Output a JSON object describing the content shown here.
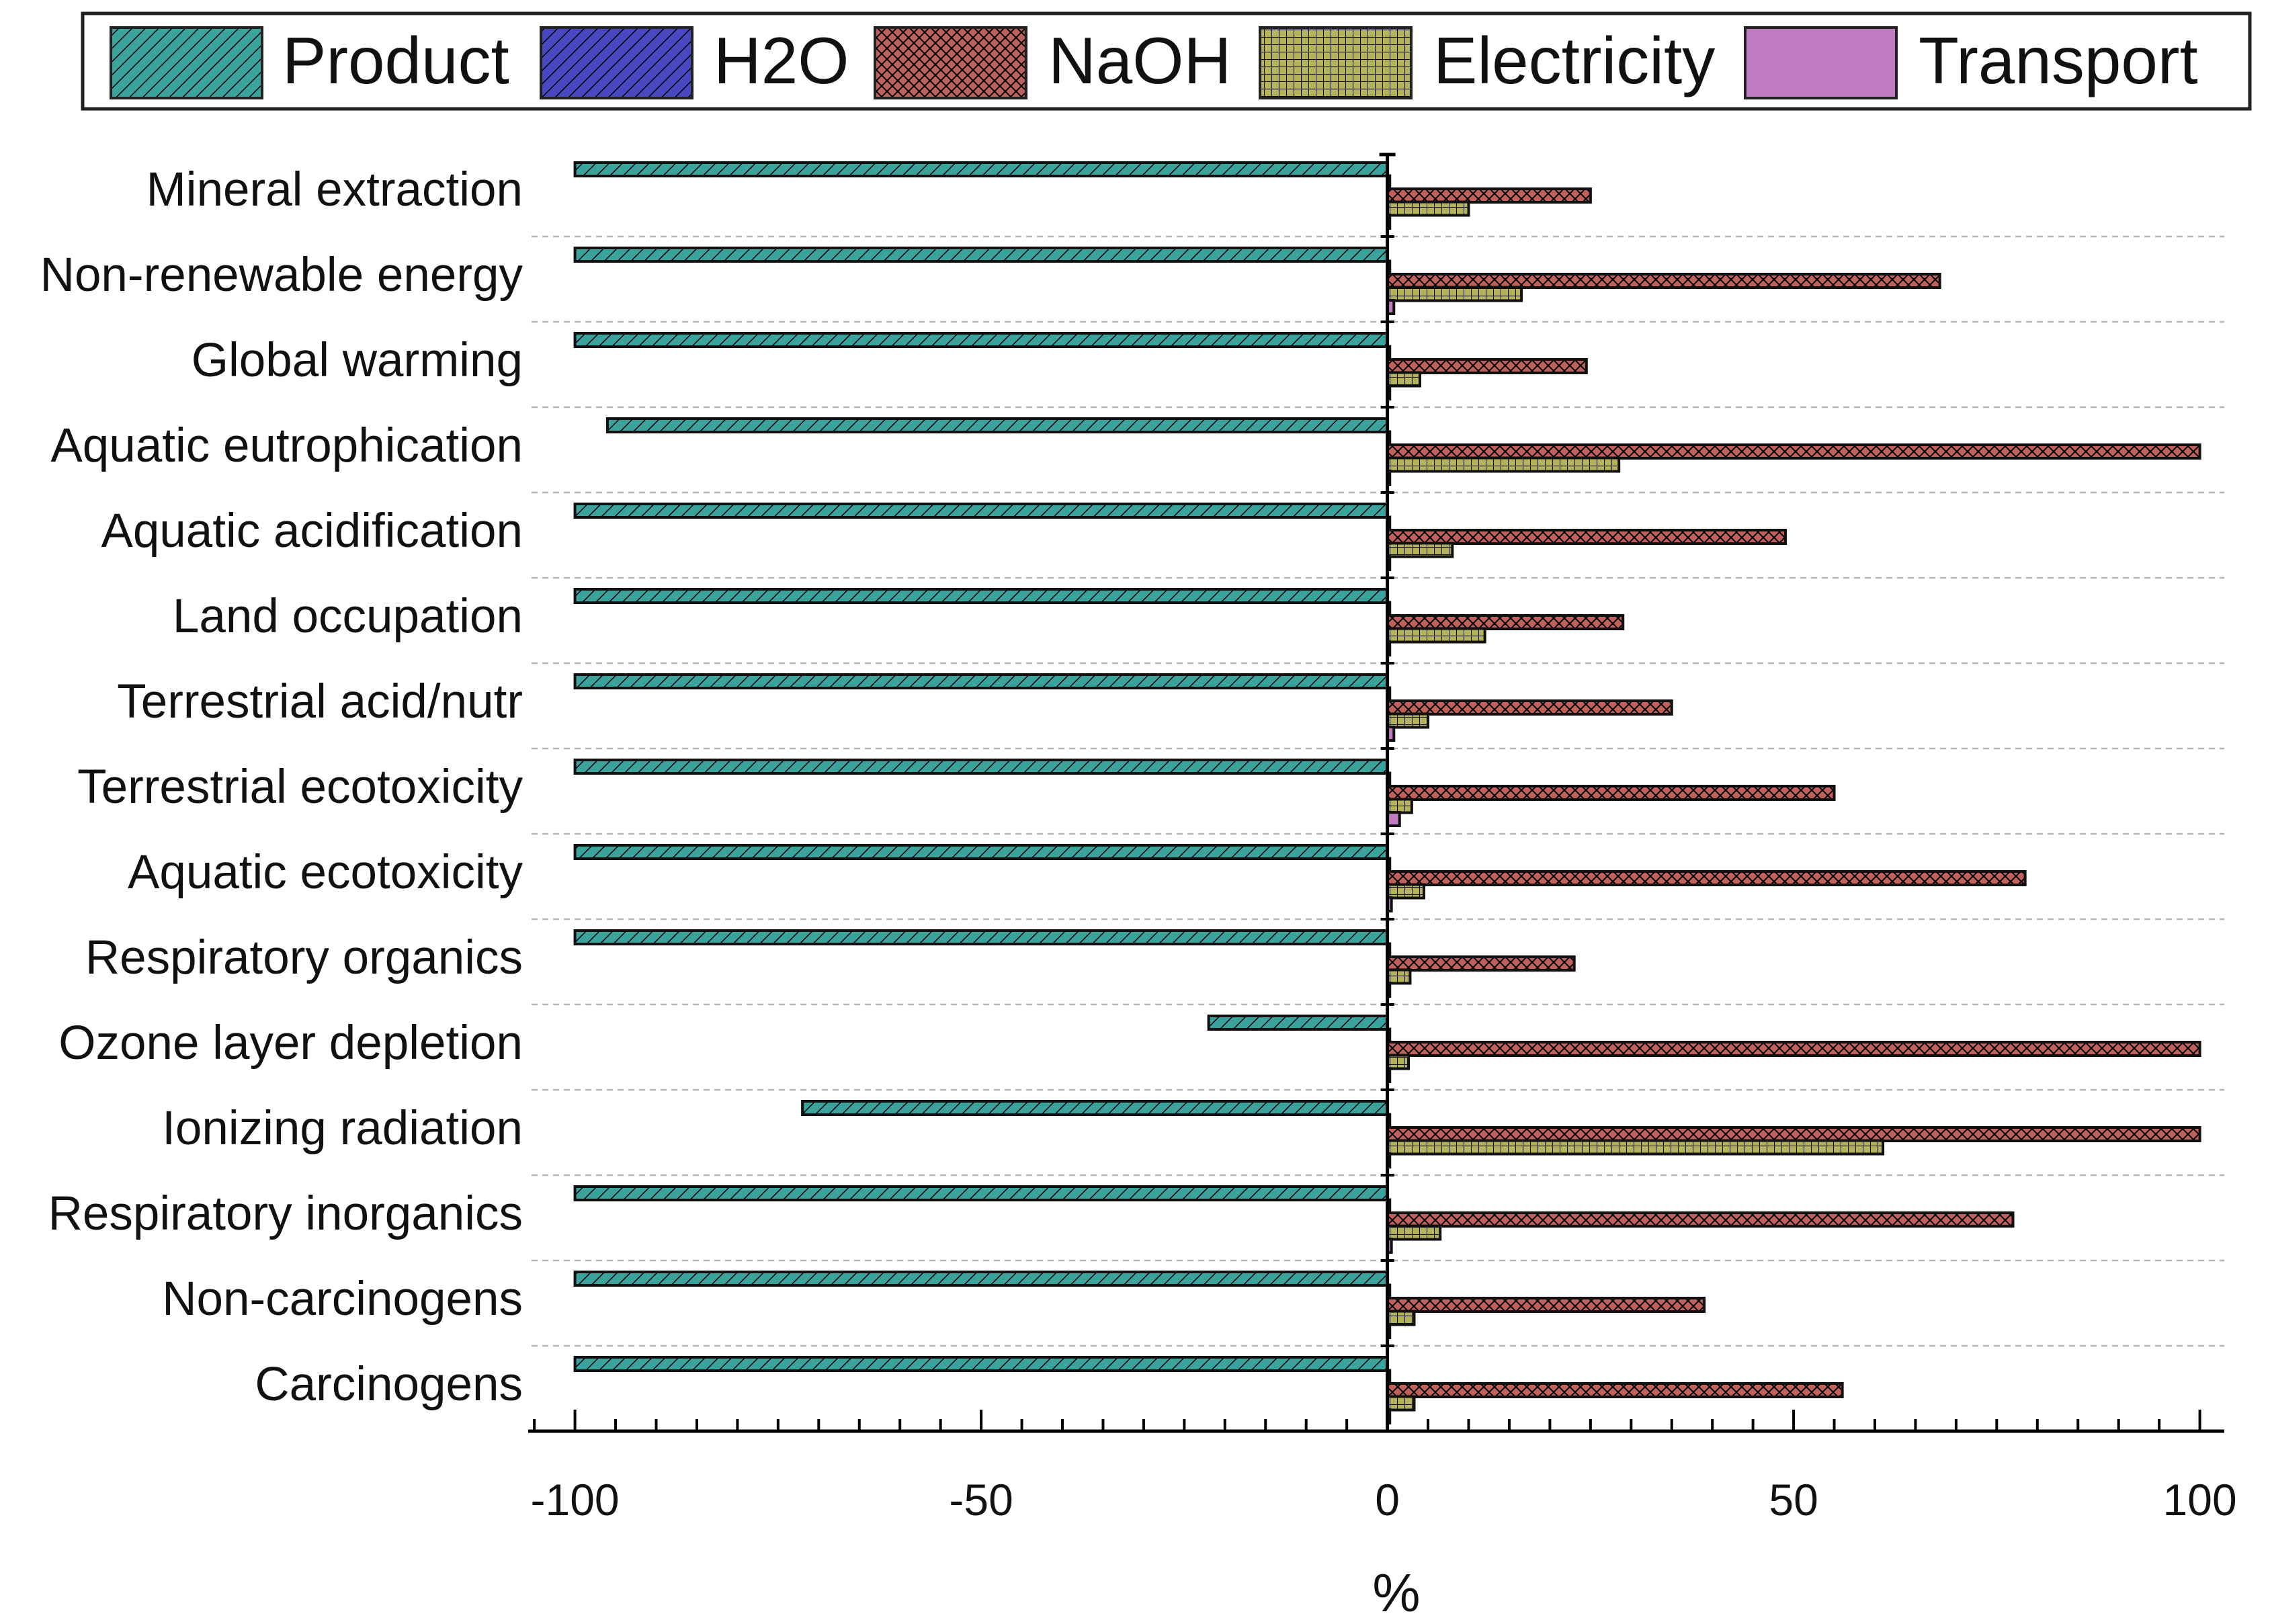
{
  "chart_data": {
    "type": "bar",
    "orientation": "horizontal",
    "categories": [
      "Mineral extraction",
      "Non-renewable energy",
      "Global warming",
      "Aquatic eutrophication",
      "Aquatic acidification",
      "Land occupation",
      "Terrestrial acid/nutr",
      "Terrestrial ecotoxicity",
      "Aquatic ecotoxicity",
      "Respiratory organics",
      "Ozone layer depletion",
      "Ionizing radiation",
      "Respiratory inorganics",
      "Non-carcinogens",
      "Carcinogens"
    ],
    "series": [
      {
        "name": "Product",
        "color": "#3aa39e",
        "pattern": "diagonal",
        "values": [
          -100,
          -100,
          -100,
          -96,
          -100,
          -100,
          -100,
          -100,
          -100,
          -100,
          -22,
          -72,
          -100,
          -100,
          -100
        ]
      },
      {
        "name": "H2O",
        "color": "#4848c0",
        "pattern": "diagonal",
        "values": [
          0.3,
          0.3,
          0.3,
          0.3,
          0.3,
          0.3,
          0.3,
          0.3,
          0.3,
          0.3,
          0.3,
          0.3,
          0.3,
          0.3,
          0.3
        ]
      },
      {
        "name": "NaOH",
        "color": "#c0605c",
        "pattern": "crosshatch",
        "values": [
          25,
          68,
          24.5,
          100,
          49,
          29,
          35,
          55,
          78.5,
          23,
          100,
          100,
          77,
          39,
          56
        ]
      },
      {
        "name": "Electricity",
        "color": "#b5b35a",
        "pattern": "grid",
        "values": [
          10,
          16.5,
          4,
          28.5,
          8,
          12,
          5,
          3,
          4.5,
          2.8,
          2.6,
          61,
          6.5,
          3.3,
          3.3
        ]
      },
      {
        "name": "Transport",
        "color": "#c07cc0",
        "pattern": "solid",
        "values": [
          0.3,
          0.8,
          0.3,
          0.3,
          0.3,
          0.3,
          0.8,
          1.5,
          0.5,
          0.3,
          0.3,
          0.3,
          0.5,
          0.3,
          0.3
        ]
      }
    ],
    "xlim": [
      -107,
      103
    ],
    "xticks": [
      -100,
      -50,
      0,
      50,
      100
    ],
    "xtick_labels": [
      "-100",
      "-50",
      "0",
      "50",
      "100"
    ],
    "xlabel": "%",
    "ylabel": "",
    "title": "",
    "grid": "horizontal dashed separators between categories",
    "legend_position": "top"
  }
}
